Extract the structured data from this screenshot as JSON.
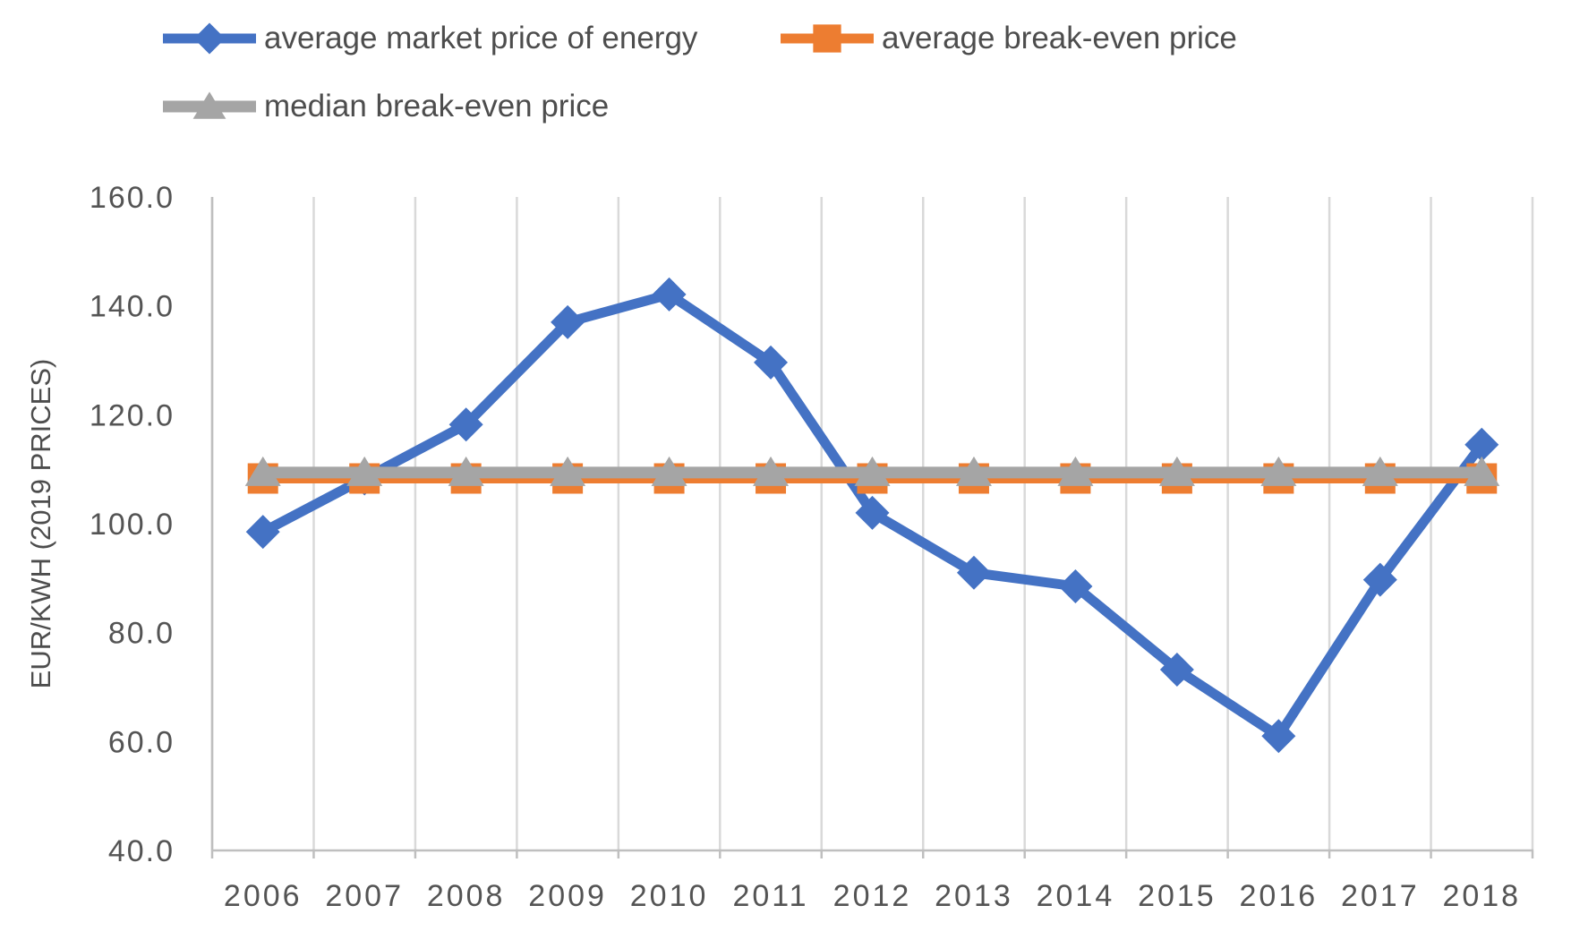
{
  "chart_data": {
    "type": "line",
    "title": "",
    "ylabel": "EUR/KWH (2019 PRICES)",
    "xlabel": "",
    "categories": [
      "2006",
      "2007",
      "2008",
      "2009",
      "2010",
      "2011",
      "2012",
      "2013",
      "2014",
      "2015",
      "2016",
      "2017",
      "2018"
    ],
    "yticks": [
      "160.0",
      "140.0",
      "120.0",
      "100.0",
      "80.0",
      "60.0",
      "40.0"
    ],
    "ylim": [
      40,
      160
    ],
    "grid": "vertical-only",
    "legend_position": "top-left",
    "series": [
      {
        "name": "average market price of energy",
        "marker": "diamond",
        "color": "#4472C4",
        "line_width": 11,
        "values": [
          98.5,
          108.3,
          118.2,
          137.0,
          142.1,
          129.6,
          102.0,
          91.0,
          88.5,
          73.2,
          61.0,
          89.7,
          114.5
        ]
      },
      {
        "name": "average break-even price",
        "marker": "square",
        "color": "#ED7D31",
        "line_width": 11,
        "values": [
          108.3,
          108.3,
          108.3,
          108.3,
          108.3,
          108.3,
          108.3,
          108.3,
          108.3,
          108.3,
          108.3,
          108.3,
          108.3
        ]
      },
      {
        "name": "median break-even price",
        "marker": "triangle",
        "color": "#A5A5A5",
        "line_width": 13,
        "values": [
          109.4,
          109.4,
          109.4,
          109.4,
          109.4,
          109.4,
          109.4,
          109.4,
          109.4,
          109.4,
          109.4,
          109.4,
          109.4
        ]
      }
    ],
    "axis_color": "#BFBFBF",
    "gridline_color": "#D9D9D9",
    "text_color": "#545454"
  }
}
